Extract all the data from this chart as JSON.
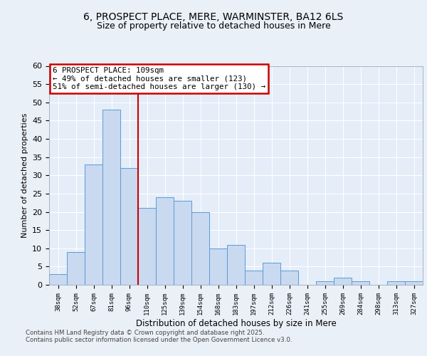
{
  "title1": "6, PROSPECT PLACE, MERE, WARMINSTER, BA12 6LS",
  "title2": "Size of property relative to detached houses in Mere",
  "xlabel": "Distribution of detached houses by size in Mere",
  "ylabel": "Number of detached properties",
  "categories": [
    "38sqm",
    "52sqm",
    "67sqm",
    "81sqm",
    "96sqm",
    "110sqm",
    "125sqm",
    "139sqm",
    "154sqm",
    "168sqm",
    "183sqm",
    "197sqm",
    "212sqm",
    "226sqm",
    "241sqm",
    "255sqm",
    "269sqm",
    "284sqm",
    "298sqm",
    "313sqm",
    "327sqm"
  ],
  "values": [
    3,
    9,
    33,
    48,
    32,
    21,
    24,
    23,
    20,
    10,
    11,
    4,
    6,
    4,
    0,
    1,
    2,
    1,
    0,
    1,
    1
  ],
  "bar_color": "#c9d9f0",
  "bar_edge_color": "#5b9bd5",
  "vline_pos": 4.5,
  "vline_color": "#cc0000",
  "ann_line1": "6 PROSPECT PLACE: 109sqm",
  "ann_line2": "← 49% of detached houses are smaller (123)",
  "ann_line3": "51% of semi-detached houses are larger (130) →",
  "ann_box_facecolor": "#ffffff",
  "ann_box_edgecolor": "#cc0000",
  "footer_text": "Contains HM Land Registry data © Crown copyright and database right 2025.\nContains public sector information licensed under the Open Government Licence v3.0.",
  "ylim": [
    0,
    60
  ],
  "yticks": [
    0,
    5,
    10,
    15,
    20,
    25,
    30,
    35,
    40,
    45,
    50,
    55,
    60
  ],
  "bg_color": "#eaf0f8",
  "plot_bg_color": "#e4edf8",
  "grid_color": "#ffffff",
  "title_fontsize": 10,
  "subtitle_fontsize": 9
}
